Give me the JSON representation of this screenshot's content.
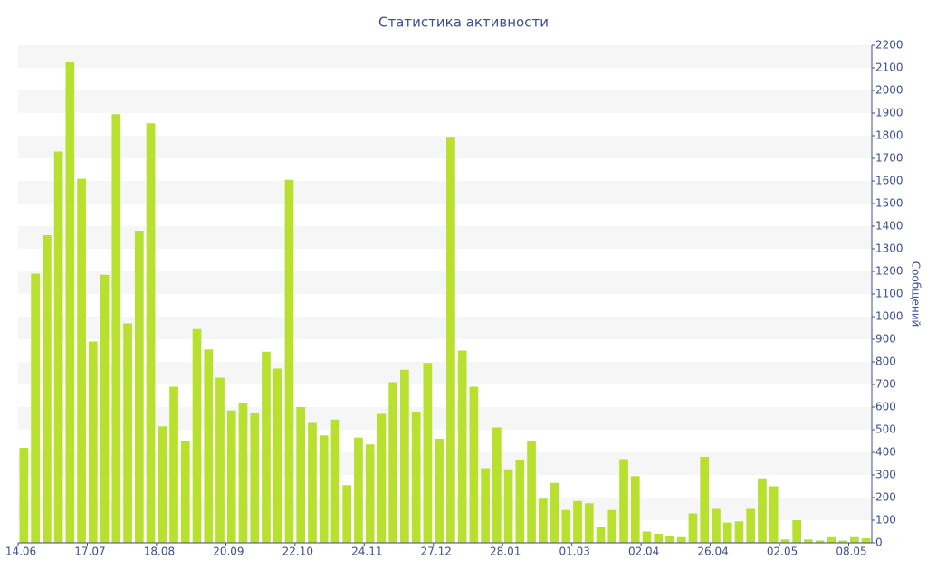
{
  "chart_data": {
    "type": "bar",
    "title": "Статистика активности",
    "y_axis_label": "Сообщений",
    "categories": [
      "14.06",
      null,
      null,
      null,
      null,
      null,
      "17.07",
      null,
      null,
      null,
      null,
      null,
      "18.08",
      null,
      null,
      null,
      null,
      null,
      "20.09",
      null,
      null,
      null,
      null,
      null,
      "22.10",
      null,
      null,
      null,
      null,
      null,
      "24.11",
      null,
      null,
      null,
      null,
      null,
      "27.12",
      null,
      null,
      null,
      null,
      null,
      "28.01",
      null,
      null,
      null,
      null,
      null,
      "01.03",
      null,
      null,
      null,
      null,
      null,
      "02.04",
      null,
      null,
      null,
      null,
      null,
      "26.04",
      null,
      null,
      null,
      null,
      null,
      "02.05",
      null,
      null,
      null,
      null,
      null,
      "08.05",
      null
    ],
    "values": [
      420,
      1190,
      1360,
      1730,
      2125,
      1610,
      890,
      1185,
      1895,
      970,
      1380,
      1855,
      515,
      690,
      450,
      945,
      855,
      730,
      585,
      620,
      575,
      845,
      770,
      1605,
      600,
      530,
      475,
      545,
      255,
      465,
      435,
      570,
      710,
      765,
      580,
      795,
      460,
      1795,
      850,
      690,
      330,
      510,
      325,
      365,
      450,
      195,
      265,
      145,
      185,
      175,
      70,
      145,
      370,
      295,
      50,
      40,
      30,
      25,
      130,
      380,
      150,
      90,
      95,
      150,
      285,
      250,
      15,
      100,
      15,
      10,
      25,
      10,
      25,
      20
    ],
    "color": "#b8e02e",
    "ylim": [
      0,
      2200
    ],
    "yticks": [
      0,
      100,
      200,
      300,
      400,
      500,
      600,
      700,
      800,
      900,
      1000,
      1100,
      1200,
      1300,
      1400,
      1500,
      1600,
      1700,
      1800,
      1900,
      2000,
      2100,
      2200
    ],
    "y_axis_side": "right",
    "grid": "bands"
  }
}
